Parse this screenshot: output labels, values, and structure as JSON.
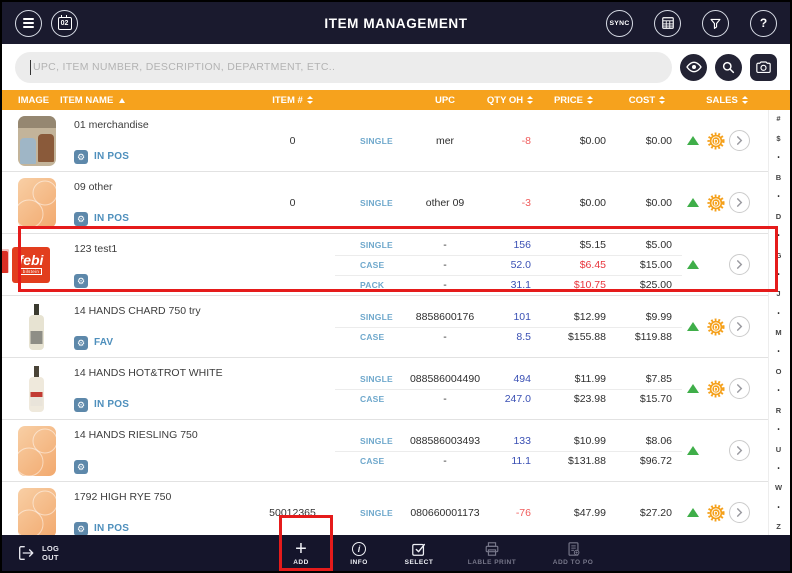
{
  "header": {
    "calendar_label": "02",
    "title": "ITEM MANAGEMENT",
    "sync_label": "SYNC",
    "help_label": "?"
  },
  "search": {
    "placeholder": "UPC, ITEM NUMBER, DESCRIPTION, DEPARTMENT, ETC..",
    "value": ""
  },
  "table": {
    "columns": {
      "image": "IMAGE",
      "item_name": "ITEM NAME",
      "item_no": "ITEM #",
      "upc": "UPC",
      "qty_oh": "QTY OH",
      "price": "PRICE",
      "cost": "COST",
      "sales": "SALES"
    },
    "rows": [
      {
        "name": "01 merchandise",
        "badge": "IN POS",
        "item_no": "0",
        "lines": [
          {
            "unit": "SINGLE",
            "upc": "mer",
            "qty": "-8",
            "price": "$0.00",
            "cost": "$0.00"
          }
        ]
      },
      {
        "name": "09 other",
        "badge": "IN POS",
        "item_no": "0",
        "lines": [
          {
            "unit": "SINGLE",
            "upc": "other 09",
            "qty": "-3",
            "price": "$0.00",
            "cost": "$0.00"
          }
        ]
      },
      {
        "name": "123 test1",
        "badge": "",
        "item_no": "",
        "image_label": "febi",
        "image_sublabel": "bilstein",
        "lines": [
          {
            "unit": "SINGLE",
            "upc": "-",
            "qty": "156",
            "price": "$5.15",
            "cost": "$5.00"
          },
          {
            "unit": "CASE",
            "upc": "-",
            "qty": "52.0",
            "price": "$6.45",
            "cost": "$15.00"
          },
          {
            "unit": "PACK",
            "upc": "-",
            "qty": "31.1",
            "price": "$10.75",
            "cost": "$25.00"
          }
        ]
      },
      {
        "name": "14 HANDS CHARD 750 try",
        "badge": "FAV",
        "item_no": "",
        "lines": [
          {
            "unit": "SINGLE",
            "upc": "8858600176",
            "qty": "101",
            "price": "$12.99",
            "cost": "$9.99"
          },
          {
            "unit": "CASE",
            "upc": "-",
            "qty": "8.5",
            "price": "$155.88",
            "cost": "$119.88"
          }
        ]
      },
      {
        "name": "14 HANDS HOT&TROT WHITE",
        "badge": "IN POS",
        "item_no": "",
        "lines": [
          {
            "unit": "SINGLE",
            "upc": "088586004490",
            "qty": "494",
            "price": "$11.99",
            "cost": "$7.85"
          },
          {
            "unit": "CASE",
            "upc": "-",
            "qty": "247.0",
            "price": "$23.98",
            "cost": "$15.70"
          }
        ]
      },
      {
        "name": "14 HANDS RIESLING 750",
        "badge": "",
        "item_no": "",
        "lines": [
          {
            "unit": "SINGLE",
            "upc": "088586003493",
            "qty": "133",
            "price": "$10.99",
            "cost": "$8.06"
          },
          {
            "unit": "CASE",
            "upc": "-",
            "qty": "11.1",
            "price": "$131.88",
            "cost": "$96.72"
          }
        ]
      },
      {
        "name": "1792 HIGH RYE 750",
        "badge": "IN POS",
        "item_no": "50012365",
        "lines": [
          {
            "unit": "SINGLE",
            "upc": "080660001173",
            "qty": "-76",
            "price": "$47.99",
            "cost": "$27.20"
          }
        ]
      }
    ]
  },
  "alphabet": [
    "#",
    "$",
    "•",
    "B",
    "•",
    "D",
    "•",
    "G",
    "•",
    "J",
    "•",
    "M",
    "•",
    "O",
    "•",
    "R",
    "•",
    "U",
    "•",
    "W",
    "•",
    "Z"
  ],
  "footer": {
    "logout_line1": "LOG",
    "logout_line2": "OUT",
    "add": "ADD",
    "info": "INFO",
    "select": "SELECT",
    "lable_print": "LABLE PRINT",
    "add_to_po": "ADD TO PO"
  },
  "colors": {
    "accent_orange": "#F6A21D",
    "bar_dark": "#1A1A2E",
    "highlight_red": "#E51B1B",
    "qty_blue": "#3A50B4",
    "negative_red": "#F05B5B",
    "price_red": "#E8353C",
    "link_blue": "#4E8FBC",
    "sales_green": "#3FAE49"
  },
  "icons": {
    "header": [
      "menu-icon",
      "calendar-icon",
      "sync-icon",
      "calculator-icon",
      "filter-icon",
      "help-icon"
    ],
    "search": [
      "eye-icon",
      "search-icon",
      "camera-icon"
    ],
    "row": [
      "gear-icon",
      "trend-up-icon",
      "d-badge-icon",
      "chevron-right-icon"
    ],
    "footer": [
      "logout-icon",
      "plus-icon",
      "info-icon",
      "select-icon",
      "printer-icon",
      "add-to-po-icon"
    ]
  }
}
